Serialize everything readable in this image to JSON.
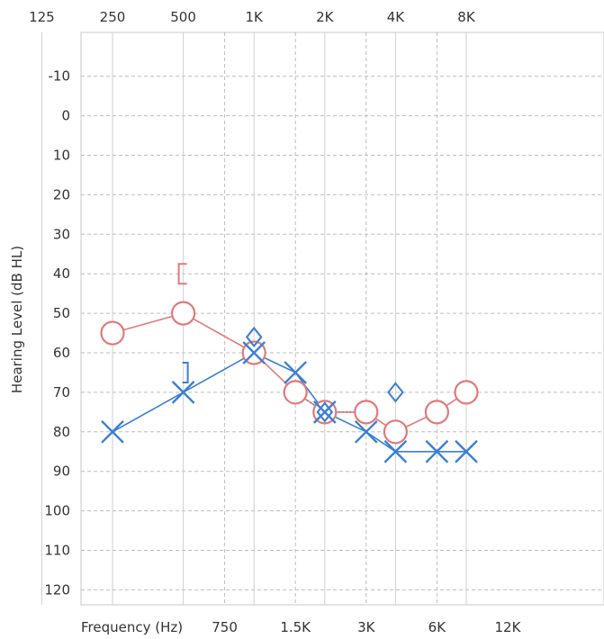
{
  "chart_data": {
    "type": "scatter",
    "xlabel": "Frequency (Hz)",
    "ylabel": "Hearing Level (dB HL)",
    "ylim": [
      -15,
      125
    ],
    "y_ticks": [
      "-10",
      "0",
      "10",
      "20",
      "30",
      "40",
      "50",
      "60",
      "70",
      "80",
      "90",
      "100",
      "110",
      "120"
    ],
    "x_ticks_top": [
      "125",
      "250",
      "500",
      "1K",
      "2K",
      "4K",
      "8K"
    ],
    "x_ticks_bottom": [
      "750",
      "1.5K",
      "3K",
      "6K",
      "12K"
    ],
    "grid": true,
    "series": [
      {
        "ear": "right",
        "symbol": "circle",
        "color": "#e07a7a",
        "connected": true,
        "points": [
          [
            250,
            55
          ],
          [
            500,
            50
          ],
          [
            1000,
            60
          ],
          [
            1500,
            70
          ],
          [
            2000,
            75
          ],
          [
            3000,
            75
          ],
          [
            4000,
            80
          ],
          [
            6000,
            75
          ],
          [
            8000,
            70
          ]
        ]
      },
      {
        "ear": "left",
        "symbol": "x",
        "color": "#3a7fd4",
        "connected": true,
        "points": [
          [
            250,
            80
          ],
          [
            500,
            70
          ],
          [
            1000,
            60
          ],
          [
            1500,
            65
          ],
          [
            2000,
            75
          ],
          [
            3000,
            80
          ],
          [
            4000,
            85
          ],
          [
            6000,
            85
          ],
          [
            8000,
            85
          ]
        ]
      },
      {
        "ear": "right",
        "symbol": "bracket-left",
        "color": "#e07a7a",
        "connected": false,
        "points": [
          [
            500,
            40
          ]
        ]
      },
      {
        "ear": "left",
        "symbol": "bracket-right",
        "color": "#3a7fd4",
        "connected": false,
        "points": [
          [
            500,
            65
          ]
        ]
      },
      {
        "ear": "right",
        "symbol": "diamond",
        "color": "#e07a7a",
        "connected": false,
        "points": [
          [
            1000,
            56
          ],
          [
            2000,
            75
          ]
        ]
      },
      {
        "ear": "left",
        "symbol": "diamond",
        "color": "#3a7fd4",
        "connected": false,
        "points": [
          [
            1000,
            56
          ],
          [
            2000,
            75
          ],
          [
            4000,
            70
          ]
        ]
      }
    ],
    "dotted_segments": [
      [
        [
          1500,
          70
        ],
        [
          2000,
          75
        ]
      ],
      [
        [
          2000,
          75
        ],
        [
          3000,
          75
        ]
      ]
    ]
  }
}
